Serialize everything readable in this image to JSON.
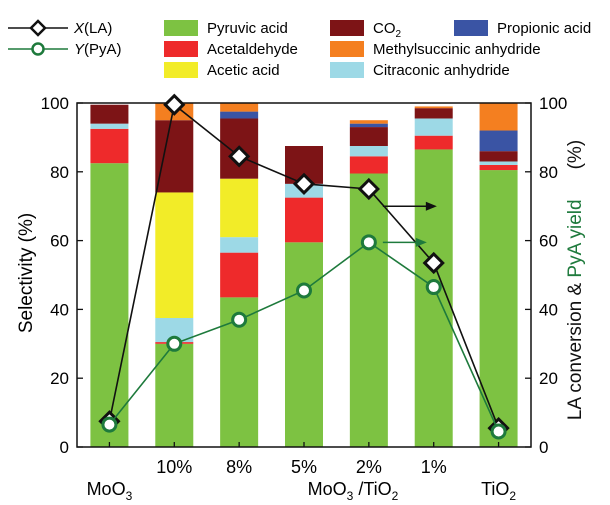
{
  "chart_data": {
    "type": "bar",
    "stacked": true,
    "categories": [
      "MoO3",
      "10%",
      "8%",
      "5%",
      "2%",
      "1%",
      "TiO2"
    ],
    "group_label": "MoO3 /TiO2",
    "group_label_parts": {
      "base": "MoO",
      "sub1": "3",
      "mid": " /TiO",
      "sub2": "2"
    },
    "category_display": [
      {
        "base": "MoO",
        "sub": "3"
      },
      {
        "base": "10%",
        "sub": ""
      },
      {
        "base": "8%",
        "sub": ""
      },
      {
        "base": "5%",
        "sub": ""
      },
      {
        "base": "2%",
        "sub": ""
      },
      {
        "base": "1%",
        "sub": ""
      },
      {
        "base": "TiO",
        "sub": "2"
      }
    ],
    "ylabel": "Selectivity (%)",
    "y2label_parts": {
      "black": "LA conversion & ",
      "green": "PyA yield",
      "unit": "(%)"
    },
    "ylim": [
      0,
      100
    ],
    "y2lim": [
      0,
      100
    ],
    "yticks": [
      0,
      20,
      40,
      60,
      80,
      100
    ],
    "series": [
      {
        "name": "Pyruvic acid",
        "color": "#7dc242",
        "values": [
          82.5,
          30,
          43.5,
          59.5,
          79.5,
          86.5,
          80.5
        ]
      },
      {
        "name": "Acetaldehyde",
        "color": "#ee2a2b",
        "values": [
          10,
          0.5,
          13,
          13,
          5,
          4,
          1.5
        ]
      },
      {
        "name": "Citraconic anhydride",
        "color": "#9dd9e6",
        "values": [
          1.5,
          7,
          4.5,
          4,
          3,
          5,
          1
        ]
      },
      {
        "name": "Acetic acid",
        "color": "#f2ec28",
        "values": [
          0,
          36.5,
          17,
          0,
          0,
          0,
          0
        ]
      },
      {
        "name": "CO2",
        "color": "#7d1416",
        "values": [
          5.5,
          21,
          17.5,
          11,
          5.5,
          3,
          3
        ]
      },
      {
        "name": "Propionic acid",
        "color": "#3a54a4",
        "values": [
          0,
          0,
          2,
          0,
          1,
          0,
          6
        ]
      },
      {
        "name": "Methylsuccinic anhydride",
        "color": "#f47f20",
        "values": [
          0,
          5,
          2.5,
          0,
          1,
          0.5,
          8
        ]
      }
    ],
    "lines": [
      {
        "name": "X(LA)",
        "color": "#111111",
        "marker": "diamond",
        "values": [
          7.5,
          99.5,
          84.5,
          76.5,
          75,
          53.5,
          5.5
        ]
      },
      {
        "name": "Y(PyA)",
        "color": "#1e7a3c",
        "marker": "circle",
        "values": [
          6.5,
          30,
          37,
          45.5,
          59.5,
          46.5,
          4.5
        ]
      }
    ],
    "legend": {
      "lines": [
        {
          "name_base": "X",
          "name_rest": "(LA)",
          "color": "#111111",
          "marker": "diamond"
        },
        {
          "name_base": "Y",
          "name_rest": "(PyA)",
          "color": "#1e7a3c",
          "marker": "circle"
        }
      ],
      "bars": [
        {
          "label": "Pyruvic acid",
          "color": "#7dc242"
        },
        {
          "label": "Acetaldehyde",
          "color": "#ee2a2b"
        },
        {
          "label": "Acetic acid",
          "color": "#f2ec28"
        },
        {
          "label": "CO",
          "sub": "2",
          "color": "#7d1416"
        },
        {
          "label": "Methylsuccinic anhydride",
          "color": "#f47f20"
        },
        {
          "label": "Citraconic anhydride",
          "color": "#9dd9e6"
        },
        {
          "label": "Propionic acid",
          "color": "#3a54a4"
        }
      ]
    },
    "legend_placement": "top",
    "grid": false
  }
}
